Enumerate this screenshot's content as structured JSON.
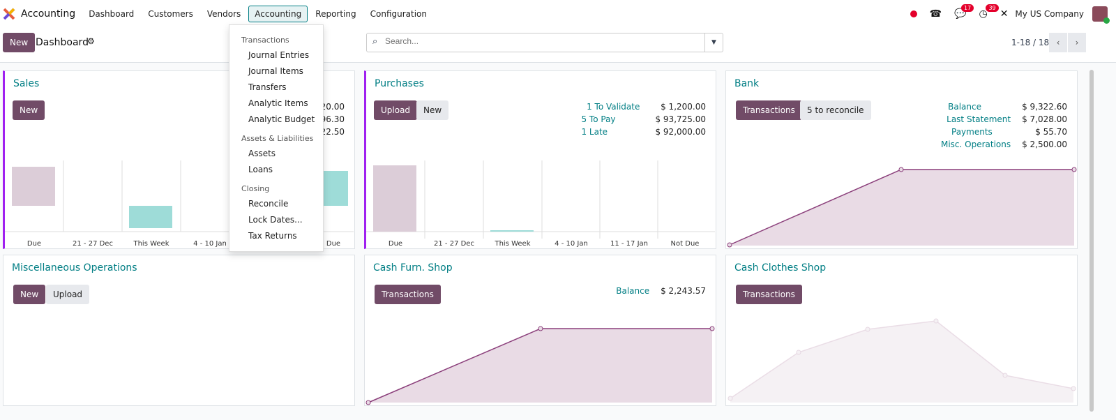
{
  "nav": {
    "app": "Accounting",
    "menus": [
      "Dashboard",
      "Customers",
      "Vendors",
      "Accounting",
      "Reporting",
      "Configuration"
    ],
    "active_menu": "Accounting",
    "messages_count": "17",
    "activities_count": "39",
    "company": "My US Company"
  },
  "control": {
    "new": "New",
    "title": "Dashboard",
    "search_placeholder": "Search...",
    "pager": "1-18 / 18"
  },
  "accounting_menu": [
    {
      "header": "Transactions",
      "items": [
        "Journal Entries",
        "Journal Items",
        "Transfers",
        "Analytic Items",
        "Analytic Budget"
      ]
    },
    {
      "header": "Assets & Liabilities",
      "items": [
        "Assets",
        "Loans"
      ]
    },
    {
      "header": "Closing",
      "items": [
        "Reconcile",
        "Lock Dates...",
        "Tax Returns"
      ]
    }
  ],
  "colors": {
    "primary": "#714b67",
    "teal": "#017e84",
    "bar_past": "#dccdd8",
    "bar_future": "#9edcd8",
    "area": "#e9dbe5"
  },
  "cards": {
    "sales": {
      "title": "Sales",
      "new": "New",
      "stats_partial": [
        "20.00",
        "96.30",
        "22.50"
      ],
      "categories": [
        "Due",
        "21 - 27 Dec",
        "This Week",
        "4 - 10 Jan",
        "",
        "Due"
      ]
    },
    "purchases": {
      "title": "Purchases",
      "upload": "Upload",
      "new": "New",
      "stats": [
        {
          "k": "1 To Validate",
          "v": "$ 1,200.00"
        },
        {
          "k": "5 To Pay",
          "v": "$ 93,725.00"
        },
        {
          "k": "1 Late",
          "v": "$ 92,000.00"
        }
      ],
      "categories": [
        "Due",
        "21 - 27 Dec",
        "This Week",
        "4 - 10 Jan",
        "11 - 17 Jan",
        "Not Due"
      ]
    },
    "bank": {
      "title": "Bank",
      "transactions": "Transactions",
      "reconcile": "5 to reconcile",
      "stats": [
        {
          "k": "Balance",
          "v": "$ 9,322.60"
        },
        {
          "k": "Last Statement",
          "v": "$ 7,028.00"
        },
        {
          "k": "Payments",
          "v": "$ 55.70"
        },
        {
          "k": "Misc. Operations",
          "v": "$ 2,500.00"
        }
      ]
    },
    "misc": {
      "title": "Miscellaneous Operations",
      "new": "New",
      "upload": "Upload"
    },
    "cash_furn": {
      "title": "Cash Furn. Shop",
      "transactions": "Transactions",
      "stats": [
        {
          "k": "Balance",
          "v": "$ 2,243.57"
        }
      ]
    },
    "cash_clothes": {
      "title": "Cash Clothes Shop",
      "transactions": "Transactions"
    }
  }
}
